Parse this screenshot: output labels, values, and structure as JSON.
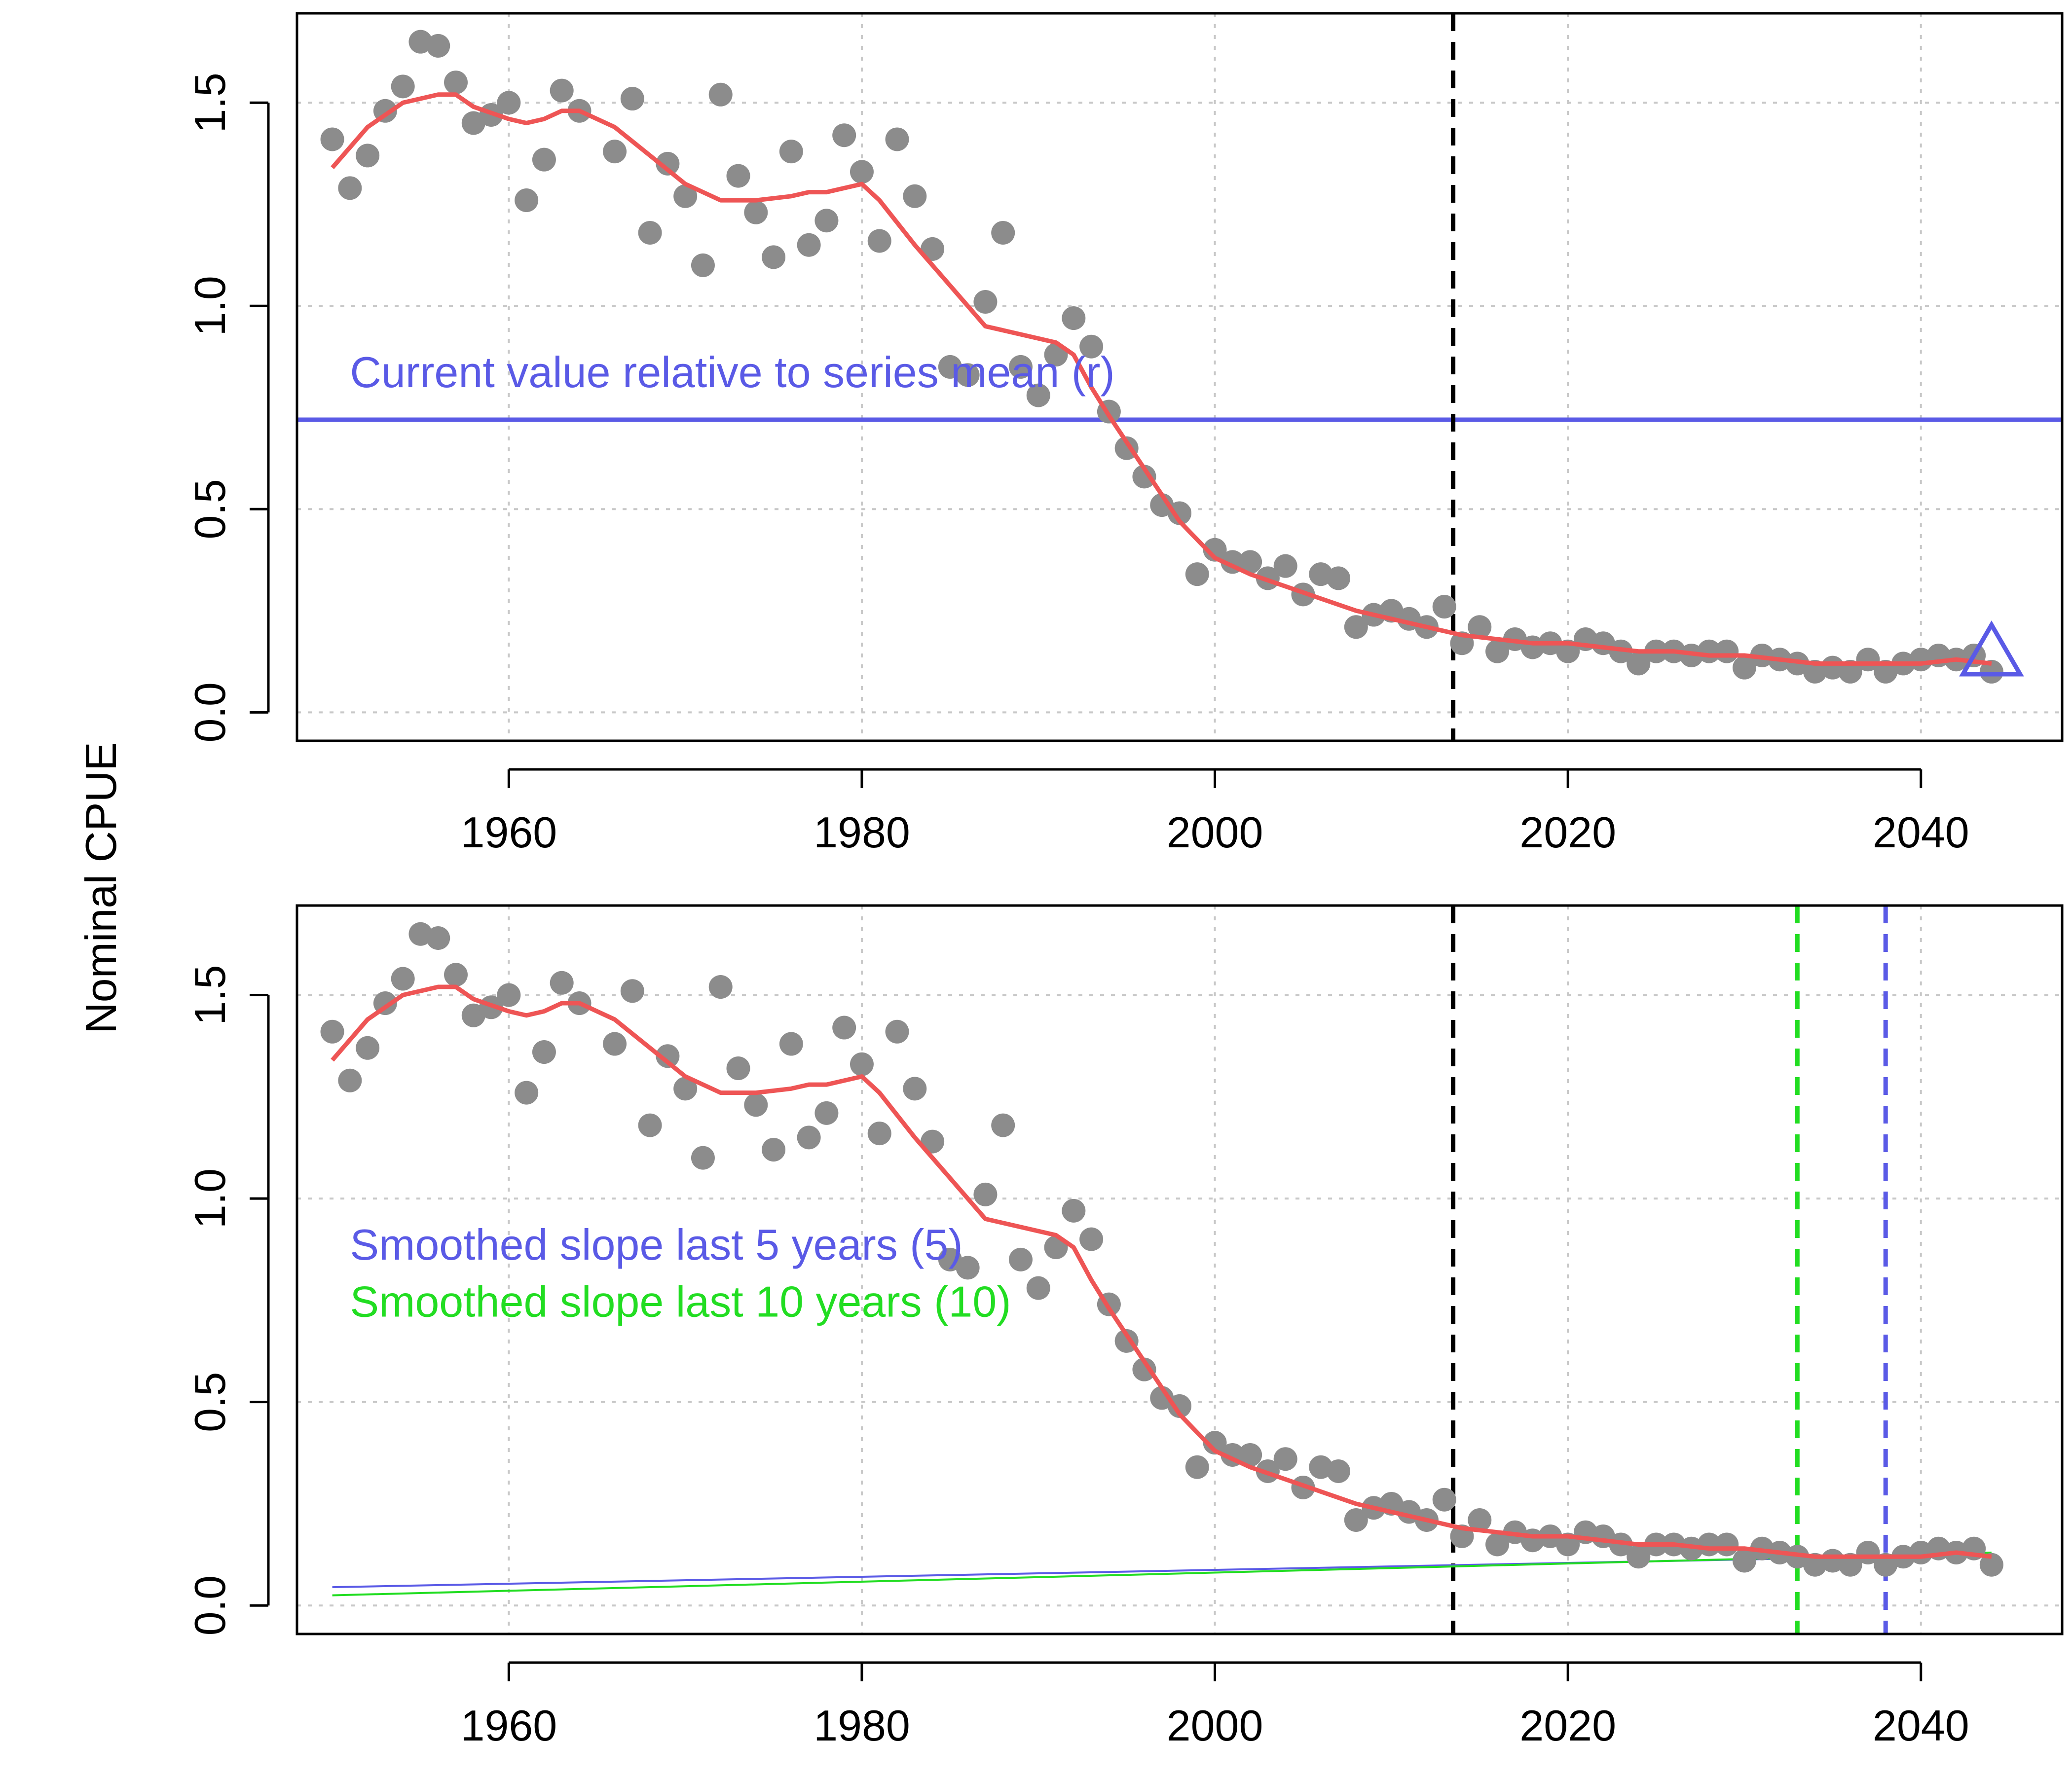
{
  "ylabel": "Nominal CPUE",
  "colors": {
    "points": "#8c8c8c",
    "smooth": "#ee5555",
    "blue": "#5a5ae6",
    "green": "#22dd22",
    "axis": "#000000",
    "grid": "#c8c8c8"
  },
  "chart_data": [
    {
      "type": "scatter",
      "panel": "top",
      "xlim": [
        1948,
        2048
      ],
      "ylim": [
        -0.07,
        1.72
      ],
      "xticks": [
        1960,
        1980,
        2000,
        2020,
        2040
      ],
      "yticks": [
        0.0,
        0.5,
        1.0,
        1.5
      ],
      "ytick_labels": [
        "0.0",
        "0.5",
        "1.0",
        "1.5"
      ],
      "grid": true,
      "annotation": "Current value relative to series mean (r)",
      "series_mean": 0.72,
      "current_marker": {
        "x": 2044,
        "y": 0.14,
        "shape": "triangle"
      },
      "vline_black": 2013.5,
      "points_ref": "observed",
      "smooth_ref": "smooth"
    },
    {
      "type": "scatter",
      "panel": "bottom",
      "xlim": [
        1948,
        2048
      ],
      "ylim": [
        -0.07,
        1.72
      ],
      "xticks": [
        1960,
        1980,
        2000,
        2020,
        2040
      ],
      "yticks": [
        0.0,
        0.5,
        1.0,
        1.5
      ],
      "ytick_labels": [
        "0.0",
        "0.5",
        "1.0",
        "1.5"
      ],
      "grid": true,
      "annotations": [
        "Smoothed slope last 5 years (5)",
        "Smoothed slope last 10 years (10)"
      ],
      "vline_black": 2013.5,
      "vline_green": 2033,
      "vline_blue": 2038,
      "slope_lines": [
        {
          "name": "Smoothed slope last 5 years (5)",
          "x": [
            1950,
            2044
          ],
          "y": [
            0.045,
            0.125
          ]
        },
        {
          "name": "Smoothed slope last 10 years (10)",
          "x": [
            1950,
            2044
          ],
          "y": [
            0.025,
            0.13
          ]
        }
      ],
      "points_ref": "observed",
      "smooth_ref": "smooth"
    }
  ],
  "observed": {
    "x": [
      1950,
      1951,
      1952,
      1953,
      1954,
      1955,
      1956,
      1957,
      1958,
      1959,
      1960,
      1961,
      1962,
      1963,
      1964,
      1966,
      1967,
      1968,
      1969,
      1970,
      1971,
      1972,
      1973,
      1974,
      1975,
      1976,
      1977,
      1978,
      1979,
      1980,
      1981,
      1982,
      1983,
      1984,
      1985,
      1986,
      1987,
      1988,
      1989,
      1990,
      1991,
      1992,
      1993,
      1994,
      1995,
      1996,
      1997,
      1998,
      1999,
      2000,
      2001,
      2002,
      2003,
      2004,
      2005,
      2006,
      2007,
      2008,
      2009,
      2010,
      2011,
      2012,
      2013,
      2014,
      2015,
      2016,
      2017,
      2018,
      2019,
      2020,
      2021,
      2022,
      2023,
      2024,
      2025,
      2026,
      2027,
      2028,
      2029,
      2030,
      2031,
      2032,
      2033,
      2034,
      2035,
      2036,
      2037,
      2038,
      2039,
      2040,
      2041,
      2042,
      2043,
      2044
    ],
    "y": [
      1.41,
      1.29,
      1.37,
      1.48,
      1.54,
      1.65,
      1.64,
      1.55,
      1.45,
      1.47,
      1.5,
      1.26,
      1.36,
      1.53,
      1.48,
      1.38,
      1.51,
      1.18,
      1.35,
      1.27,
      1.1,
      1.52,
      1.32,
      1.23,
      1.12,
      1.38,
      1.15,
      1.21,
      1.42,
      1.33,
      1.16,
      1.41,
      1.27,
      1.14,
      0.85,
      0.83,
      1.01,
      1.18,
      0.85,
      0.78,
      0.88,
      0.97,
      0.9,
      0.74,
      0.65,
      0.58,
      0.51,
      0.49,
      0.34,
      0.4,
      0.37,
      0.37,
      0.33,
      0.36,
      0.29,
      0.34,
      0.33,
      0.21,
      0.24,
      0.25,
      0.23,
      0.21,
      0.26,
      0.17,
      0.21,
      0.15,
      0.18,
      0.16,
      0.17,
      0.15,
      0.18,
      0.17,
      0.15,
      0.12,
      0.15,
      0.15,
      0.14,
      0.15,
      0.15,
      0.11,
      0.14,
      0.13,
      0.12,
      0.1,
      0.11,
      0.1,
      0.13,
      0.1,
      0.12,
      0.13,
      0.14,
      0.13,
      0.14,
      0.1
    ]
  },
  "smooth": {
    "x": [
      1950,
      1952,
      1954,
      1956,
      1957,
      1958,
      1960,
      1961,
      1962,
      1963,
      1964,
      1966,
      1968,
      1970,
      1972,
      1974,
      1976,
      1977,
      1978,
      1980,
      1981,
      1983,
      1985,
      1987,
      1988,
      1990,
      1991,
      1992,
      1993,
      1994,
      1996,
      1998,
      2000,
      2002,
      2004,
      2006,
      2008,
      2010,
      2012,
      2014,
      2016,
      2018,
      2020,
      2022,
      2024,
      2026,
      2028,
      2030,
      2032,
      2034,
      2036,
      2038,
      2040,
      2042,
      2044
    ],
    "y": [
      1.34,
      1.44,
      1.5,
      1.52,
      1.52,
      1.49,
      1.46,
      1.45,
      1.46,
      1.48,
      1.48,
      1.44,
      1.37,
      1.3,
      1.26,
      1.26,
      1.27,
      1.28,
      1.28,
      1.3,
      1.26,
      1.15,
      1.05,
      0.95,
      0.94,
      0.92,
      0.91,
      0.88,
      0.8,
      0.73,
      0.6,
      0.47,
      0.38,
      0.34,
      0.31,
      0.28,
      0.25,
      0.23,
      0.21,
      0.19,
      0.18,
      0.17,
      0.17,
      0.16,
      0.15,
      0.15,
      0.14,
      0.14,
      0.13,
      0.12,
      0.12,
      0.12,
      0.12,
      0.13,
      0.12
    ]
  }
}
